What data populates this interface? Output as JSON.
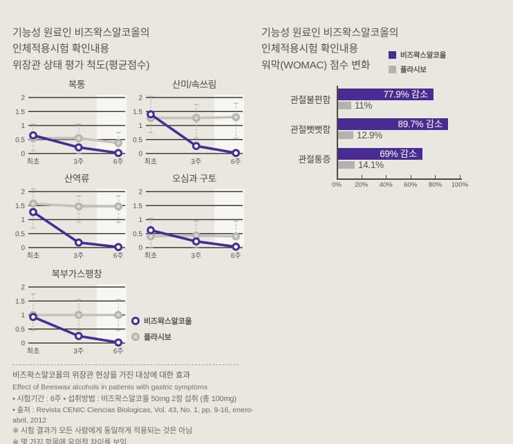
{
  "colors": {
    "background": "#e8e7e2",
    "beeswax_purple": "#482c92",
    "placebo_gray_line": "#c3c2be",
    "placebo_gray_marker": "#b5b4b0",
    "placebo_gray_bar": "#b3b2ae",
    "grid_line": "#3a3936",
    "highlight_band": "#f6f6f3",
    "whisker": "#a8a7a3",
    "text_dark": "#55534e",
    "text_muted": "#6b6964",
    "bar_label_white": "#ffffff"
  },
  "left": {
    "title_lines": [
      "기능성 원료인 비즈왁스알코올의",
      "인체적용시험 확인내용",
      "위장관 상태 평가 척도(평균점수)"
    ],
    "legend": [
      {
        "name": "beeswax",
        "label": "비즈왁스알코올"
      },
      {
        "name": "placebo",
        "label": "플라시보"
      }
    ],
    "footnotes": [
      "비즈왁스알코올의 위장관 현상을 가진 대상에 대한 효과",
      "Effect of Beeswax alcohols in patients with gastric symptoms",
      "• 시험기간 : 6주    • 섭취방법 : 비즈왁스알코올 50mg 2정 섭취 (총 100mg)",
      "• 출처 : Revista CENIC Ciencias Biologicas, Vol. 43, No. 1, pp. 9-16, enero-abril, 2012",
      "※ 시험 결과가 모든 사람에게 동일하게 적용되는 것은 아님",
      "※ 몇 가지 항목에 유의적 차이를 보임"
    ]
  },
  "right": {
    "title_lines": [
      "기능성 원료인 비즈왁스알코올의",
      "인체적용시험 확인내용",
      "워막(WOMAC) 점수 변화"
    ],
    "legend": [
      {
        "name": "beeswax",
        "label": "비즈왁스알코올"
      },
      {
        "name": "placebo",
        "label": "플라시보"
      }
    ]
  },
  "chart_data": [
    {
      "type": "line",
      "title": "복통",
      "x": [
        "최초",
        "3주",
        "6주"
      ],
      "ylim": [
        0,
        2
      ],
      "yticks": [
        0,
        0.5,
        1,
        1.5,
        2
      ],
      "series": [
        {
          "name": "비즈왁스알코올",
          "values": [
            0.65,
            0.22,
            0.02
          ]
        },
        {
          "name": "플라시보",
          "values": [
            0.55,
            0.55,
            0.38
          ]
        }
      ],
      "error_ranges": [
        [
          0.1,
          1.05
        ],
        [
          0.0,
          1.05
        ],
        [
          0.0,
          0.75
        ]
      ]
    },
    {
      "type": "line",
      "title": "산미/속쓰림",
      "x": [
        "최초",
        "3주",
        "6주"
      ],
      "ylim": [
        0,
        2
      ],
      "yticks": [
        0,
        0.5,
        1,
        1.5,
        2
      ],
      "series": [
        {
          "name": "비즈왁스알코올",
          "values": [
            1.4,
            0.27,
            0.02
          ]
        },
        {
          "name": "플라시보",
          "values": [
            1.27,
            1.27,
            1.3
          ]
        }
      ],
      "error_ranges": [
        [
          0.75,
          2.05
        ],
        [
          0.55,
          1.75
        ],
        [
          0.55,
          1.8
        ]
      ]
    },
    {
      "type": "line",
      "title": "산역류",
      "x": [
        "최초",
        "3주",
        "6주"
      ],
      "ylim": [
        0,
        2
      ],
      "yticks": [
        0,
        0.5,
        1,
        1.5,
        2
      ],
      "series": [
        {
          "name": "비즈왁스알코올",
          "values": [
            1.27,
            0.18,
            0.02
          ]
        },
        {
          "name": "플라시보",
          "values": [
            1.57,
            1.47,
            1.47
          ]
        }
      ],
      "error_ranges": [
        [
          0.7,
          2.1
        ],
        [
          0.9,
          1.85
        ],
        [
          0.9,
          1.85
        ]
      ]
    },
    {
      "type": "line",
      "title": "오심과 구토",
      "x": [
        "최초",
        "3주",
        "6주"
      ],
      "ylim": [
        0,
        2
      ],
      "yticks": [
        0,
        0.5,
        1,
        1.5,
        2
      ],
      "series": [
        {
          "name": "비즈왁스알코올",
          "values": [
            0.62,
            0.22,
            0.03
          ]
        },
        {
          "name": "플라시보",
          "values": [
            0.4,
            0.43,
            0.4
          ]
        }
      ],
      "error_ranges": [
        [
          0.0,
          1.05
        ],
        [
          0.0,
          0.95
        ],
        [
          0.0,
          0.95
        ]
      ]
    },
    {
      "type": "line",
      "title": "복부가스팽창",
      "x": [
        "최초",
        "3주",
        "6주"
      ],
      "ylim": [
        0,
        2
      ],
      "yticks": [
        0,
        0.5,
        1,
        1.5,
        2
      ],
      "series": [
        {
          "name": "비즈왁스알코올",
          "values": [
            0.93,
            0.25,
            0.02
          ]
        },
        {
          "name": "플라시보",
          "values": [
            1.0,
            1.0,
            1.0
          ]
        }
      ],
      "error_ranges": [
        [
          0.45,
          1.75
        ],
        [
          0.45,
          1.55
        ],
        [
          0.45,
          1.55
        ]
      ]
    },
    {
      "type": "bar",
      "orientation": "horizontal",
      "title": "워막(WOMAC) 점수 변화",
      "categories": [
        "관절불편함",
        "관절뻣뻣함",
        "관절통증"
      ],
      "series": [
        {
          "name": "비즈왁스알코올",
          "values": [
            77.9,
            89.7,
            69
          ],
          "labels": [
            "77.9% 감소",
            "89.7% 감소",
            "69% 감소"
          ]
        },
        {
          "name": "플라시보",
          "values": [
            11,
            12.9,
            14.1
          ],
          "labels": [
            "11%",
            "12.9%",
            "14.1%"
          ]
        }
      ],
      "xlim": [
        0,
        100
      ],
      "x_ticks": [
        "0%",
        "20%",
        "40%",
        "60%",
        "80%",
        "100%"
      ]
    }
  ]
}
